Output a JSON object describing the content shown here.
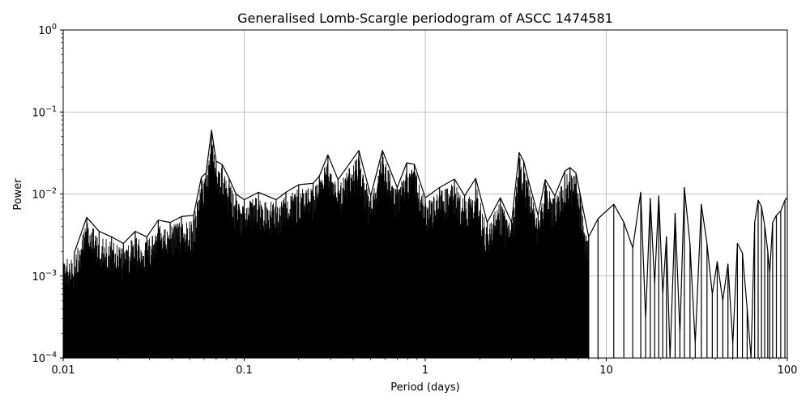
{
  "chart_data": {
    "type": "line",
    "title": "Generalised Lomb-Scargle periodogram of ASCC 1474581",
    "xlabel": "Period (days)",
    "ylabel": "Power",
    "xscale": "log",
    "yscale": "log",
    "xlim": [
      0.01,
      100
    ],
    "ylim": [
      0.0001,
      1
    ],
    "grid": true,
    "x_ticks": [
      {
        "value": 0.01,
        "label": "0.01"
      },
      {
        "value": 0.1,
        "label": "0.1"
      },
      {
        "value": 1,
        "label": "1"
      },
      {
        "value": 10,
        "label": "10"
      },
      {
        "value": 100,
        "label": "100"
      }
    ],
    "y_ticks": [
      {
        "value": 0.0001,
        "base": "10",
        "exp": "−4"
      },
      {
        "value": 0.001,
        "base": "10",
        "exp": "−3"
      },
      {
        "value": 0.01,
        "base": "10",
        "exp": "−2"
      },
      {
        "value": 0.1,
        "base": "10",
        "exp": "−1"
      },
      {
        "value": 1,
        "base": "10",
        "exp": "0"
      }
    ],
    "line_color": "#000000",
    "grid_color": "#b0b0b0",
    "series": [
      {
        "x": [
          0.0115,
          0.0135,
          0.0158,
          0.0185,
          0.0215,
          0.025,
          0.029,
          0.0335,
          0.039,
          0.045,
          0.0525,
          0.058,
          0.0615,
          0.066,
          0.07,
          0.0755,
          0.0826,
          0.09,
          0.1,
          0.12,
          0.15,
          0.17,
          0.2,
          0.24,
          0.26,
          0.29,
          0.33,
          0.43,
          0.5,
          0.58,
          0.7,
          0.79,
          0.87,
          1.0,
          1.2,
          1.45,
          1.65,
          1.9,
          2.2,
          2.6,
          3.0,
          3.3,
          3.5,
          3.7,
          4.2,
          4.6,
          5.2,
          5.9,
          6.3,
          6.8,
          7.2,
          8.0,
          9.0,
          11.0,
          12.5,
          14.0,
          15.5,
          16.5,
          17.5,
          18.5,
          19.5,
          20.5,
          21.5,
          22.5,
          24.0,
          25.5,
          27.0,
          29.0,
          31.0,
          33.5,
          36.0,
          38.5,
          41.0,
          44.0,
          47.0,
          50.0,
          53.0,
          56.5,
          60.0,
          63.0,
          66.0,
          69.0,
          72.0,
          75.0,
          78.0,
          80.0,
          83.0,
          87.0,
          92.0,
          97.0,
          100.0
        ],
        "y": [
          0.0019,
          0.0052,
          0.0035,
          0.003,
          0.0025,
          0.0035,
          0.003,
          0.0048,
          0.0045,
          0.0053,
          0.0055,
          0.016,
          0.018,
          0.06,
          0.025,
          0.023,
          0.0155,
          0.01,
          0.0085,
          0.0105,
          0.0085,
          0.0105,
          0.013,
          0.0135,
          0.0165,
          0.03,
          0.015,
          0.034,
          0.0095,
          0.034,
          0.012,
          0.024,
          0.023,
          0.009,
          0.012,
          0.0152,
          0.0095,
          0.0155,
          0.0045,
          0.009,
          0.0045,
          0.032,
          0.025,
          0.015,
          0.0055,
          0.015,
          0.0095,
          0.019,
          0.021,
          0.018,
          0.0095,
          0.003,
          0.005,
          0.0075,
          0.0045,
          0.0022,
          0.0105,
          0.0003,
          0.0088,
          0.0008,
          0.0095,
          0.0006,
          0.003,
          0.0001,
          0.0058,
          0.0002,
          0.012,
          0.0025,
          0.00015,
          0.0075,
          0.0025,
          0.0006,
          0.0015,
          0.0005,
          0.0014,
          0.00015,
          0.0025,
          0.0019,
          0.0004,
          0.0001,
          0.0045,
          0.0084,
          0.007,
          0.0041,
          0.002,
          0.0011,
          0.0045,
          0.0055,
          0.0062,
          0.0084,
          0.009
        ]
      }
    ]
  }
}
